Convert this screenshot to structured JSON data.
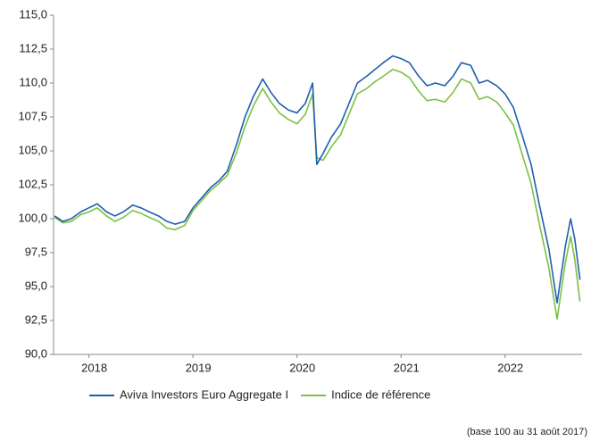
{
  "chart_data": {
    "type": "line",
    "x": [
      2017.67,
      2017.75,
      2017.83,
      2017.92,
      2018.0,
      2018.08,
      2018.17,
      2018.25,
      2018.33,
      2018.42,
      2018.5,
      2018.58,
      2018.67,
      2018.75,
      2018.83,
      2018.92,
      2019.0,
      2019.08,
      2019.17,
      2019.25,
      2019.33,
      2019.42,
      2019.5,
      2019.58,
      2019.67,
      2019.75,
      2019.83,
      2019.92,
      2020.0,
      2020.08,
      2020.15,
      2020.19,
      2020.25,
      2020.33,
      2020.42,
      2020.5,
      2020.58,
      2020.67,
      2020.75,
      2020.83,
      2020.92,
      2021.0,
      2021.08,
      2021.17,
      2021.25,
      2021.33,
      2021.42,
      2021.5,
      2021.58,
      2021.67,
      2021.75,
      2021.83,
      2021.92,
      2022.0,
      2022.08,
      2022.17,
      2022.25,
      2022.33,
      2022.42,
      2022.5,
      2022.58,
      2022.63,
      2022.67,
      2022.72
    ],
    "series": [
      {
        "name": "Aviva Investors Euro Aggregate I",
        "color": "#1f5fad",
        "values": [
          100.2,
          99.8,
          100.0,
          100.5,
          100.8,
          101.1,
          100.5,
          100.2,
          100.5,
          101.0,
          100.8,
          100.5,
          100.2,
          99.8,
          99.6,
          99.8,
          100.8,
          101.5,
          102.3,
          102.8,
          103.5,
          105.5,
          107.5,
          109.0,
          110.3,
          109.3,
          108.5,
          108.0,
          107.8,
          108.5,
          110.0,
          104.0,
          104.8,
          106.0,
          107.0,
          108.5,
          110.0,
          110.5,
          111.0,
          111.5,
          112.0,
          111.8,
          111.5,
          110.5,
          109.8,
          110.0,
          109.8,
          110.5,
          111.5,
          111.3,
          110.0,
          110.2,
          109.8,
          109.2,
          108.2,
          106.0,
          104.0,
          101.0,
          97.8,
          93.8,
          98.0,
          100.0,
          98.5,
          95.5
        ]
      },
      {
        "name": "Indice de référence",
        "color": "#7ac143",
        "values": [
          100.1,
          99.7,
          99.8,
          100.3,
          100.5,
          100.8,
          100.2,
          99.8,
          100.1,
          100.6,
          100.4,
          100.1,
          99.8,
          99.3,
          99.2,
          99.5,
          100.6,
          101.3,
          102.1,
          102.6,
          103.2,
          104.9,
          106.8,
          108.3,
          109.6,
          108.6,
          107.8,
          107.3,
          107.0,
          107.7,
          109.2,
          104.5,
          104.3,
          105.3,
          106.2,
          107.7,
          109.2,
          109.6,
          110.1,
          110.5,
          111.0,
          110.8,
          110.4,
          109.4,
          108.7,
          108.8,
          108.6,
          109.3,
          110.3,
          110.0,
          108.8,
          109.0,
          108.6,
          107.8,
          106.9,
          104.6,
          102.6,
          99.6,
          96.4,
          92.6,
          96.8,
          98.7,
          97.0,
          93.9
        ]
      }
    ],
    "xlim": [
      2017.66,
      2022.74
    ],
    "xticks": [
      2018,
      2019,
      2020,
      2021,
      2022
    ],
    "ylim": [
      90,
      115
    ],
    "yticks": [
      {
        "value": 90,
        "label": "90,0"
      },
      {
        "value": 92.5,
        "label": "92,5"
      },
      {
        "value": 95,
        "label": "95,0"
      },
      {
        "value": 97.5,
        "label": "97,5"
      },
      {
        "value": 100,
        "label": "100,0"
      },
      {
        "value": 102.5,
        "label": "102,5"
      },
      {
        "value": 105,
        "label": "105,0"
      },
      {
        "value": 107.5,
        "label": "107,5"
      },
      {
        "value": 110,
        "label": "110,0"
      },
      {
        "value": 112.5,
        "label": "112,5"
      },
      {
        "value": 115,
        "label": "115,0"
      }
    ],
    "grid": false,
    "legend": "bottom",
    "caption": "(base 100 au 31 août 2017)"
  }
}
